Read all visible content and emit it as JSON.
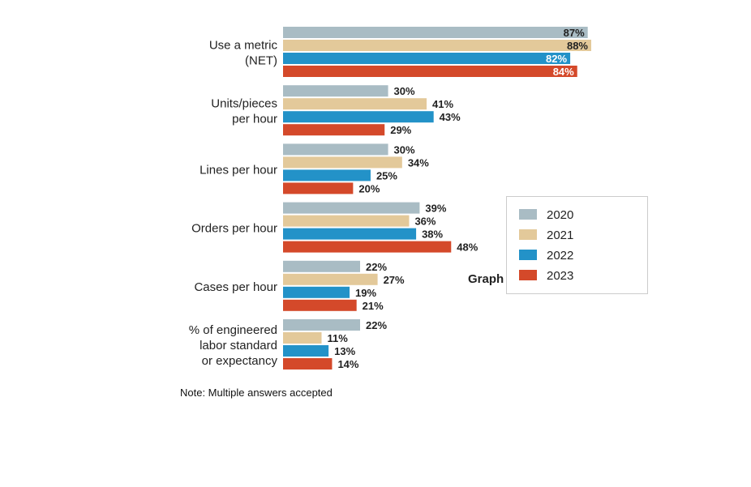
{
  "chart_data": {
    "type": "bar",
    "orientation": "horizontal",
    "categories": [
      [
        "Use a metric",
        "(NET)"
      ],
      [
        "Units/pieces",
        "per hour"
      ],
      [
        "Lines per hour"
      ],
      [
        "Orders per hour"
      ],
      [
        "Cases per hour"
      ],
      [
        "% of engineered",
        "labor standard",
        "or expectancy"
      ]
    ],
    "series": [
      {
        "name": "2020",
        "color": "#a9bcc4",
        "values": [
          87,
          30,
          30,
          39,
          22,
          22
        ]
      },
      {
        "name": "2021",
        "color": "#e3c99a",
        "values": [
          88,
          41,
          34,
          36,
          27,
          11
        ]
      },
      {
        "name": "2022",
        "color": "#2392c8",
        "values": [
          82,
          43,
          25,
          38,
          19,
          13
        ]
      },
      {
        "name": "2023",
        "color": "#d4492a",
        "values": [
          84,
          29,
          20,
          48,
          21,
          14
        ]
      }
    ],
    "value_format": "{v}%",
    "xlim": [
      0,
      88
    ],
    "grid": false,
    "legend_position": "right",
    "partially_hidden_text": "Graph"
  },
  "note": "Note: Multiple answers accepted"
}
